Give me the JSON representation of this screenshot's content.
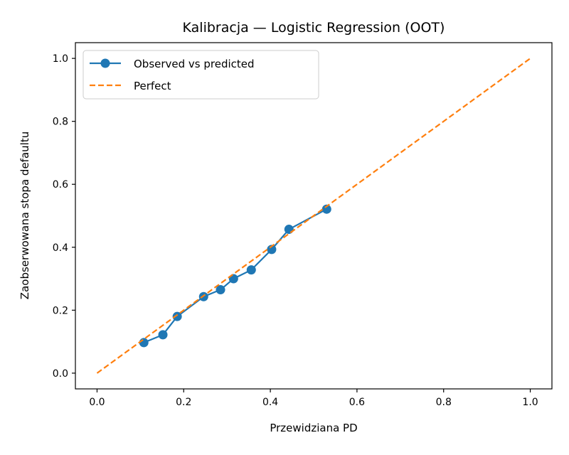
{
  "chart_data": {
    "type": "line",
    "title": "Kalibracja — Logistic Regression (OOT)",
    "xlabel": "Przewidziana PD",
    "ylabel": "Zaobserwowana stopa defaultu",
    "xlim": [
      -0.05,
      1.05
    ],
    "ylim": [
      -0.05,
      1.05
    ],
    "xticks": [
      "0.0",
      "0.2",
      "0.4",
      "0.6",
      "0.8",
      "1.0"
    ],
    "yticks": [
      "0.0",
      "0.2",
      "0.4",
      "0.6",
      "0.8",
      "1.0"
    ],
    "grid": false,
    "legend_position": "top-left",
    "series": [
      {
        "name": "Observed vs predicted",
        "color": "#1f77b4",
        "style": "solid-with-markers",
        "x": [
          0.108,
          0.152,
          0.185,
          0.246,
          0.285,
          0.315,
          0.356,
          0.403,
          0.443,
          0.53
        ],
        "y": [
          0.097,
          0.122,
          0.18,
          0.243,
          0.265,
          0.3,
          0.328,
          0.393,
          0.457,
          0.521
        ]
      },
      {
        "name": "Perfect",
        "color": "#ff7f0e",
        "style": "dashed",
        "x": [
          0.0,
          1.0
        ],
        "y": [
          0.0,
          1.0
        ]
      }
    ]
  }
}
